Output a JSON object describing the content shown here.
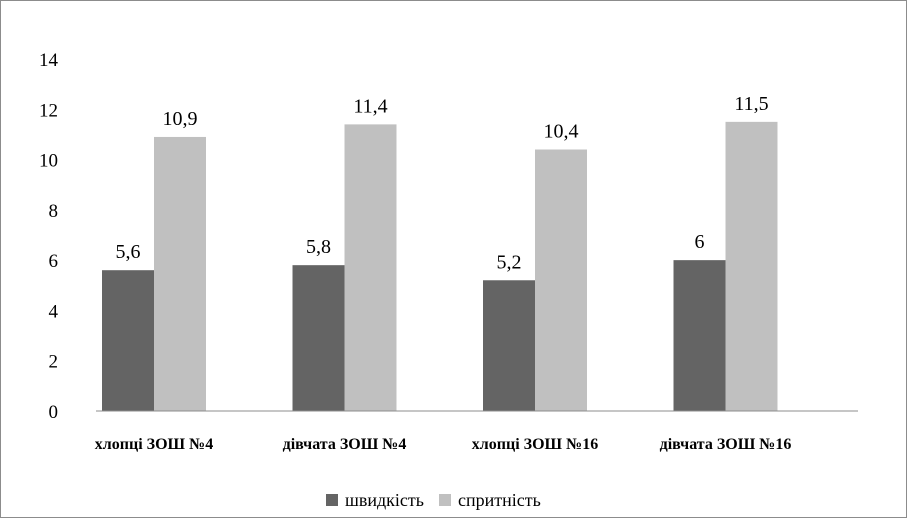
{
  "chart_data": {
    "type": "bar",
    "categories": [
      "хлопці ЗОШ №4",
      "дівчата ЗОШ №4",
      "хлопці ЗОШ №16",
      "дівчата ЗОШ №16"
    ],
    "series": [
      {
        "name": "швидкість",
        "values": [
          5.6,
          5.8,
          5.2,
          6
        ],
        "labels": [
          "5,6",
          "5,8",
          "5,2",
          "6"
        ],
        "color": "#646464"
      },
      {
        "name": "спритність",
        "values": [
          10.9,
          11.4,
          10.4,
          11.5
        ],
        "labels": [
          "10,9",
          "11,4",
          "10,4",
          "11,5"
        ],
        "color": "#c0c0c0"
      }
    ],
    "yticks": [
      "0",
      "2",
      "4",
      "6",
      "8",
      "10",
      "12",
      "14"
    ],
    "ylim": [
      0,
      14
    ],
    "grid": false,
    "legend_position": "bottom"
  }
}
